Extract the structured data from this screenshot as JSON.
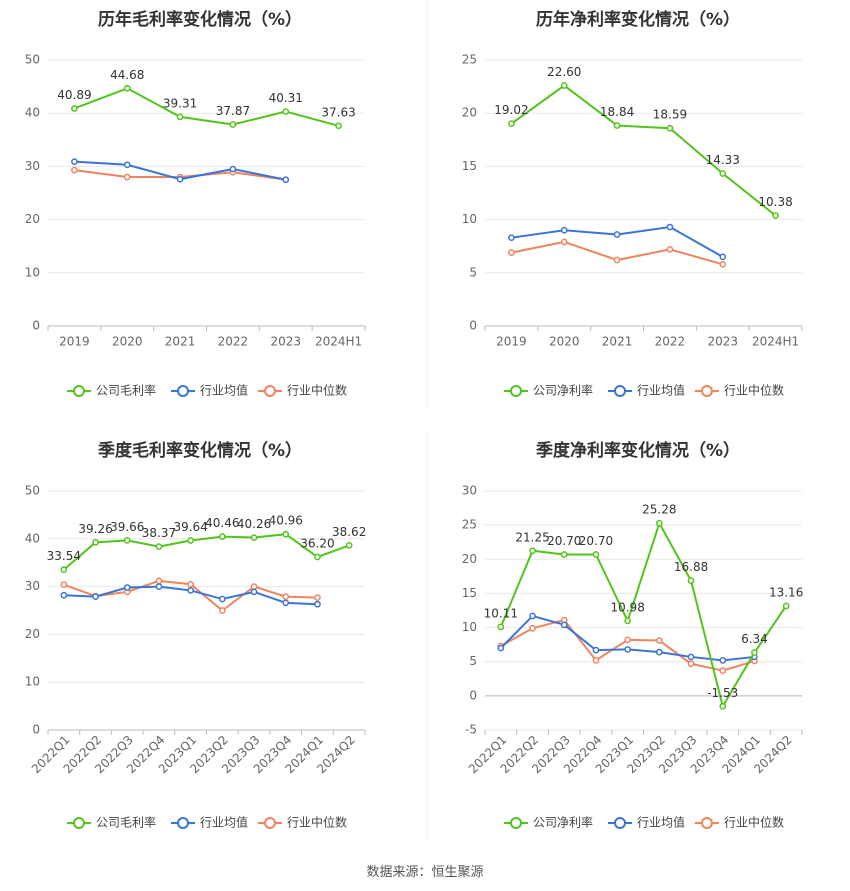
{
  "source": "数据来源：恒生聚源",
  "legend": {
    "company_gross": "公司毛利率",
    "company_net": "公司净利率",
    "industry_avg": "行业均值",
    "industry_median": "行业中位数"
  },
  "colors": {
    "company": "#52c41a",
    "industry_avg": "#3b74d9",
    "industry_median": "#f0845f"
  },
  "chart_data": [
    {
      "type": "line",
      "title": "历年毛利率变化情况（%）",
      "categories": [
        "2019",
        "2020",
        "2021",
        "2022",
        "2023",
        "2024H1"
      ],
      "ylim": [
        0,
        50
      ],
      "yticks": [
        0,
        10,
        20,
        30,
        40,
        50
      ],
      "legend_key": "company_gross",
      "series": [
        {
          "name": "公司毛利率",
          "values": [
            40.89,
            44.68,
            39.31,
            37.87,
            40.31,
            37.63
          ],
          "labels": [
            "40.89",
            "44.68",
            "39.31",
            "37.87",
            "40.31",
            "37.63"
          ]
        },
        {
          "name": "行业均值",
          "values": [
            30.9,
            30.3,
            27.6,
            29.5,
            27.5,
            null
          ]
        },
        {
          "name": "行业中位数",
          "values": [
            29.3,
            28.0,
            28.0,
            28.9,
            27.5,
            null
          ]
        }
      ]
    },
    {
      "type": "line",
      "title": "历年净利率变化情况（%）",
      "categories": [
        "2019",
        "2020",
        "2021",
        "2022",
        "2023",
        "2024H1"
      ],
      "ylim": [
        0,
        25
      ],
      "yticks": [
        0,
        5,
        10,
        15,
        20,
        25
      ],
      "legend_key": "company_net",
      "series": [
        {
          "name": "公司净利率",
          "values": [
            19.02,
            22.6,
            18.84,
            18.59,
            14.33,
            10.38
          ],
          "labels": [
            "19.02",
            "22.60",
            "18.84",
            "18.59",
            "14.33",
            "10.38"
          ]
        },
        {
          "name": "行业均值",
          "values": [
            8.3,
            9.0,
            8.6,
            9.3,
            6.5,
            null
          ]
        },
        {
          "name": "行业中位数",
          "values": [
            6.9,
            7.9,
            6.2,
            7.2,
            5.8,
            null
          ]
        }
      ]
    },
    {
      "type": "line",
      "title": "季度毛利率变化情况（%）",
      "categories": [
        "2022Q1",
        "2022Q2",
        "2022Q3",
        "2022Q4",
        "2023Q1",
        "2023Q2",
        "2023Q3",
        "2023Q4",
        "2024Q1",
        "2024Q2"
      ],
      "ylim": [
        0,
        50
      ],
      "yticks": [
        0,
        10,
        20,
        30,
        40,
        50
      ],
      "legend_key": "company_gross",
      "series": [
        {
          "name": "公司毛利率",
          "values": [
            33.54,
            39.26,
            39.66,
            38.37,
            39.64,
            40.46,
            40.26,
            40.96,
            36.2,
            38.62
          ],
          "labels": [
            "33.54",
            "39.26",
            "39.66",
            "38.37",
            "39.64",
            "40.46",
            "40.26",
            "40.96",
            "36.20",
            "38.62"
          ]
        },
        {
          "name": "行业均值",
          "values": [
            28.2,
            27.9,
            29.8,
            30.0,
            29.2,
            27.4,
            28.9,
            26.6,
            26.3,
            null
          ]
        },
        {
          "name": "行业中位数",
          "values": [
            30.4,
            28.0,
            28.9,
            31.2,
            30.5,
            25.0,
            30.0,
            27.9,
            27.7,
            null
          ]
        }
      ]
    },
    {
      "type": "line",
      "title": "季度净利率变化情况（%）",
      "categories": [
        "2022Q1",
        "2022Q2",
        "2022Q3",
        "2022Q4",
        "2023Q1",
        "2023Q2",
        "2023Q3",
        "2023Q4",
        "2024Q1",
        "2024Q2"
      ],
      "ylim": [
        -5,
        30
      ],
      "yticks": [
        -5,
        0,
        5,
        10,
        15,
        20,
        25,
        30
      ],
      "legend_key": "company_net",
      "series": [
        {
          "name": "公司净利率",
          "values": [
            10.11,
            21.25,
            20.7,
            20.7,
            10.98,
            25.28,
            16.88,
            -1.53,
            6.34,
            13.16
          ],
          "labels": [
            "10.11",
            "21.25",
            "20.70",
            "20.70",
            "10.98",
            "25.28",
            "16.88",
            "-1.53",
            "6.34",
            "13.16"
          ]
        },
        {
          "name": "行业均值",
          "values": [
            7.0,
            11.7,
            10.4,
            6.7,
            6.8,
            6.4,
            5.7,
            5.2,
            5.7,
            null
          ]
        },
        {
          "name": "行业中位数",
          "values": [
            7.3,
            9.9,
            11.1,
            5.2,
            8.2,
            8.1,
            4.7,
            3.7,
            5.1,
            null
          ]
        }
      ]
    }
  ]
}
